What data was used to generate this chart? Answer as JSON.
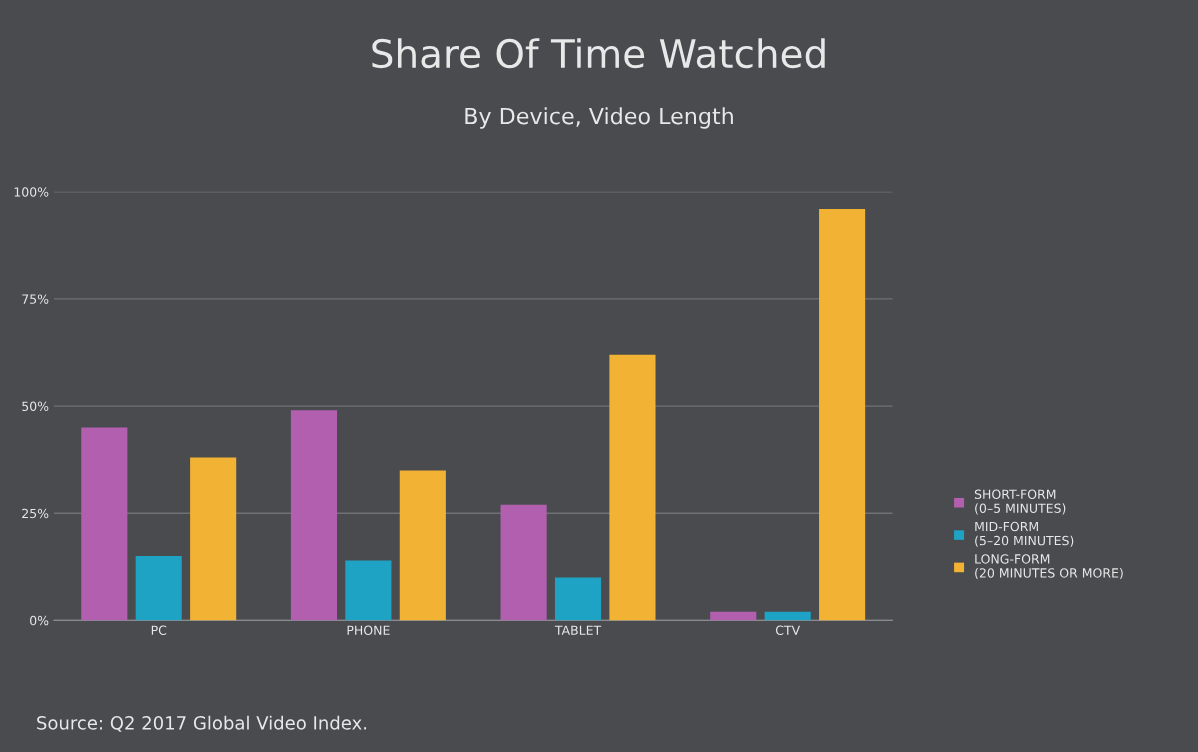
{
  "chart_data": {
    "type": "bar",
    "title": "Share Of Time Watched",
    "subtitle": "By Device, Video Length",
    "categories": [
      "PC",
      "PHONE",
      "TABLET",
      "CTV"
    ],
    "series": [
      {
        "name": "SHORT-FORM\n(0–5 MINUTES)",
        "color": "#b35fb0",
        "values": [
          45,
          49,
          27,
          2
        ]
      },
      {
        "name": "MID-FORM\n(5–20 MINUTES)",
        "color": "#1ea3c4",
        "values": [
          15,
          14,
          10,
          2
        ]
      },
      {
        "name": "LONG-FORM\n(20 MINUTES OR MORE)",
        "color": "#f2b233",
        "values": [
          38,
          35,
          62,
          96
        ]
      }
    ],
    "ylim": [
      0,
      100
    ],
    "yticks": [
      {
        "value": 0,
        "label": "0%"
      },
      {
        "value": 25,
        "label": "25%"
      },
      {
        "value": 50,
        "label": "50%"
      },
      {
        "value": 75,
        "label": "75%"
      },
      {
        "value": 100,
        "label": "100%"
      }
    ],
    "grid": "y",
    "legend": "right",
    "annotations": [
      "Source: Q2 2017 Global Video Index."
    ]
  }
}
